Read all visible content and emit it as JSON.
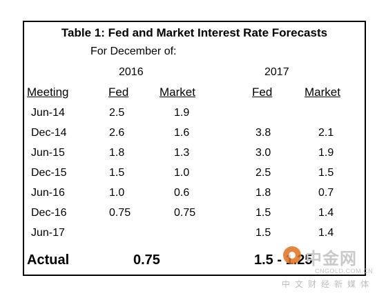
{
  "table": {
    "title": "Table 1: Fed and Market Interest Rate Forecasts",
    "subtitle": "For December of:",
    "years": [
      "2016",
      "2017"
    ],
    "headers": {
      "meeting": "Meeting",
      "fed_2016": "Fed",
      "market_2016": "Market",
      "fed_2017": "Fed",
      "market_2017": "Market"
    },
    "rows": [
      {
        "meeting": "Jun-14",
        "fed_2016": "2.5",
        "market_2016": "1.9",
        "fed_2017": "",
        "market_2017": ""
      },
      {
        "meeting": "Dec-14",
        "fed_2016": "2.6",
        "market_2016": "1.6",
        "fed_2017": "3.8",
        "market_2017": "2.1"
      },
      {
        "meeting": "Jun-15",
        "fed_2016": "1.8",
        "market_2016": "1.3",
        "fed_2017": "3.0",
        "market_2017": "1.9"
      },
      {
        "meeting": "Dec-15",
        "fed_2016": "1.5",
        "market_2016": "1.0",
        "fed_2017": "2.5",
        "market_2017": "1.5"
      },
      {
        "meeting": "Jun-16",
        "fed_2016": "1.0",
        "market_2016": "0.6",
        "fed_2017": "1.8",
        "market_2017": "0.7"
      },
      {
        "meeting": "Dec-16",
        "fed_2016": "0.75",
        "market_2016": "0.75",
        "fed_2017": "1.5",
        "market_2017": "1.4"
      },
      {
        "meeting": "Jun-17",
        "fed_2016": "",
        "market_2016": "",
        "fed_2017": "1.5",
        "market_2017": "1.4"
      }
    ],
    "actual": {
      "label": "Actual",
      "value_2016": "0.75",
      "value_2017": "1.5 - 1.25"
    }
  },
  "watermark": {
    "brand": "中金网",
    "url": "CNGOLD.COM.CN",
    "tagline": "中文财经新媒体",
    "accent_color": "#e0701f"
  }
}
